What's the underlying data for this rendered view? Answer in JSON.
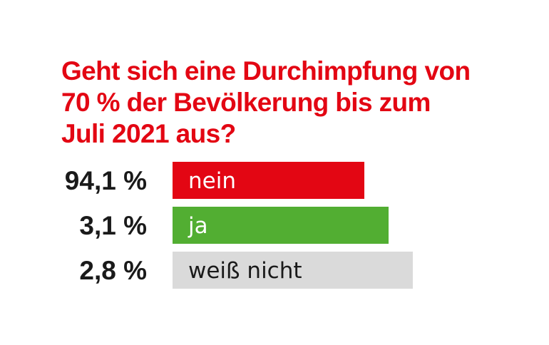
{
  "chart_data": {
    "type": "bar",
    "orientation": "horizontal",
    "title": "Geht sich eine Durchimpfung von 70 % der Bevölkerung bis zum Juli 2021 aus?",
    "title_lines": [
      "Geht sich eine Durchimpfung von",
      "70 % der Bevölkerung bis zum",
      "Juli 2021 aus?"
    ],
    "categories": [
      "nein",
      "ja",
      "weiß nicht"
    ],
    "values": [
      94.1,
      3.1,
      2.8
    ],
    "value_labels": [
      "94,1 %",
      "3,1 %",
      "2,8 %"
    ],
    "bar_colors": [
      "#e30613",
      "#52ae32",
      "#dadada"
    ],
    "bar_text_colors": [
      "#ffffff",
      "#ffffff",
      "#1a1a1a"
    ],
    "legend": "none",
    "grid": false
  }
}
